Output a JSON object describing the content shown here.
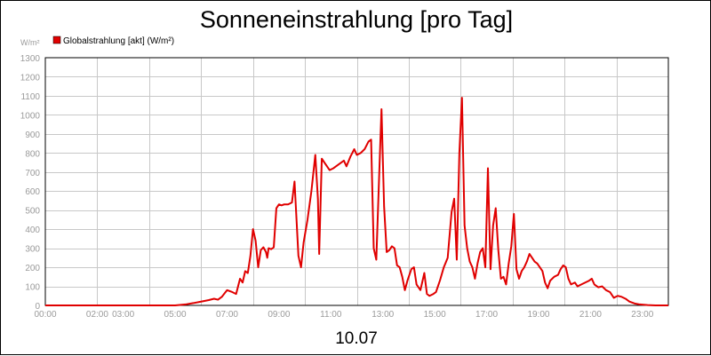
{
  "chart_data": {
    "type": "line",
    "title": "Sonneneinstrahlung [pro Tag]",
    "ylabel": "W/m²",
    "xlabel": "10.07",
    "ylim": [
      0,
      1300
    ],
    "xlim": [
      0,
      24
    ],
    "grid": true,
    "legend": "top-left",
    "y_ticks": [
      "0",
      "100",
      "200",
      "300",
      "400",
      "500",
      "600",
      "700",
      "800",
      "900",
      "1000",
      "1100",
      "1200",
      "1300"
    ],
    "x_ticks": [
      {
        "x": 0,
        "label": "00:00"
      },
      {
        "x": 2,
        "label": "02:00"
      },
      {
        "x": 3,
        "label": "03:00"
      },
      {
        "x": 5,
        "label": "05:00"
      },
      {
        "x": 7,
        "label": "07:00"
      },
      {
        "x": 9,
        "label": "09:00"
      },
      {
        "x": 11,
        "label": "11:00"
      },
      {
        "x": 13,
        "label": "13:00"
      },
      {
        "x": 15,
        "label": "15:00"
      },
      {
        "x": 17,
        "label": "17:00"
      },
      {
        "x": 19,
        "label": "19:00"
      },
      {
        "x": 21,
        "label": "21:00"
      },
      {
        "x": 23,
        "label": "23:00"
      }
    ],
    "series": [
      {
        "name": "Globalstrahlung [akt] (W/m²)",
        "color": "#e00000",
        "points": [
          [
            0,
            0
          ],
          [
            5.0,
            0
          ],
          [
            5.4,
            5
          ],
          [
            5.7,
            12
          ],
          [
            6.0,
            20
          ],
          [
            6.3,
            28
          ],
          [
            6.5,
            35
          ],
          [
            6.65,
            30
          ],
          [
            6.8,
            45
          ],
          [
            7.0,
            80
          ],
          [
            7.2,
            70
          ],
          [
            7.35,
            60
          ],
          [
            7.5,
            140
          ],
          [
            7.6,
            120
          ],
          [
            7.7,
            180
          ],
          [
            7.8,
            170
          ],
          [
            7.9,
            260
          ],
          [
            8.0,
            400
          ],
          [
            8.1,
            340
          ],
          [
            8.2,
            200
          ],
          [
            8.3,
            290
          ],
          [
            8.4,
            305
          ],
          [
            8.5,
            280
          ],
          [
            8.55,
            250
          ],
          [
            8.6,
            300
          ],
          [
            8.7,
            295
          ],
          [
            8.8,
            305
          ],
          [
            8.9,
            510
          ],
          [
            9.0,
            530
          ],
          [
            9.1,
            525
          ],
          [
            9.2,
            530
          ],
          [
            9.35,
            530
          ],
          [
            9.5,
            540
          ],
          [
            9.6,
            650
          ],
          [
            9.75,
            260
          ],
          [
            9.85,
            200
          ],
          [
            9.95,
            330
          ],
          [
            10.1,
            450
          ],
          [
            10.25,
            600
          ],
          [
            10.4,
            790
          ],
          [
            10.5,
            560
          ],
          [
            10.55,
            270
          ],
          [
            10.65,
            770
          ],
          [
            10.8,
            740
          ],
          [
            10.95,
            710
          ],
          [
            11.1,
            720
          ],
          [
            11.3,
            740
          ],
          [
            11.5,
            760
          ],
          [
            11.6,
            730
          ],
          [
            11.75,
            780
          ],
          [
            11.9,
            820
          ],
          [
            12.0,
            790
          ],
          [
            12.15,
            800
          ],
          [
            12.3,
            820
          ],
          [
            12.45,
            860
          ],
          [
            12.55,
            870
          ],
          [
            12.65,
            300
          ],
          [
            12.75,
            240
          ],
          [
            12.85,
            640
          ],
          [
            12.95,
            1030
          ],
          [
            13.05,
            520
          ],
          [
            13.15,
            280
          ],
          [
            13.25,
            290
          ],
          [
            13.35,
            310
          ],
          [
            13.45,
            300
          ],
          [
            13.55,
            210
          ],
          [
            13.65,
            200
          ],
          [
            13.75,
            150
          ],
          [
            13.85,
            80
          ],
          [
            13.95,
            130
          ],
          [
            14.1,
            190
          ],
          [
            14.2,
            200
          ],
          [
            14.3,
            110
          ],
          [
            14.45,
            80
          ],
          [
            14.6,
            170
          ],
          [
            14.7,
            60
          ],
          [
            14.8,
            50
          ],
          [
            14.95,
            60
          ],
          [
            15.05,
            70
          ],
          [
            15.2,
            130
          ],
          [
            15.35,
            200
          ],
          [
            15.5,
            250
          ],
          [
            15.65,
            490
          ],
          [
            15.75,
            560
          ],
          [
            15.85,
            240
          ],
          [
            15.95,
            800
          ],
          [
            16.05,
            1090
          ],
          [
            16.15,
            420
          ],
          [
            16.25,
            300
          ],
          [
            16.35,
            230
          ],
          [
            16.45,
            200
          ],
          [
            16.55,
            140
          ],
          [
            16.65,
            220
          ],
          [
            16.75,
            280
          ],
          [
            16.85,
            300
          ],
          [
            16.95,
            200
          ],
          [
            17.05,
            720
          ],
          [
            17.15,
            190
          ],
          [
            17.25,
            420
          ],
          [
            17.35,
            510
          ],
          [
            17.45,
            290
          ],
          [
            17.55,
            140
          ],
          [
            17.65,
            150
          ],
          [
            17.75,
            110
          ],
          [
            17.85,
            220
          ],
          [
            17.95,
            310
          ],
          [
            18.05,
            480
          ],
          [
            18.15,
            190
          ],
          [
            18.25,
            140
          ],
          [
            18.35,
            180
          ],
          [
            18.45,
            200
          ],
          [
            18.55,
            230
          ],
          [
            18.65,
            270
          ],
          [
            18.75,
            250
          ],
          [
            18.85,
            230
          ],
          [
            18.95,
            220
          ],
          [
            19.05,
            200
          ],
          [
            19.15,
            180
          ],
          [
            19.25,
            120
          ],
          [
            19.35,
            90
          ],
          [
            19.45,
            130
          ],
          [
            19.6,
            150
          ],
          [
            19.75,
            160
          ],
          [
            19.85,
            190
          ],
          [
            19.95,
            210
          ],
          [
            20.05,
            200
          ],
          [
            20.15,
            140
          ],
          [
            20.25,
            110
          ],
          [
            20.4,
            120
          ],
          [
            20.5,
            100
          ],
          [
            20.65,
            110
          ],
          [
            20.8,
            120
          ],
          [
            20.95,
            130
          ],
          [
            21.05,
            140
          ],
          [
            21.15,
            110
          ],
          [
            21.3,
            95
          ],
          [
            21.45,
            100
          ],
          [
            21.6,
            80
          ],
          [
            21.75,
            70
          ],
          [
            21.9,
            40
          ],
          [
            22.05,
            50
          ],
          [
            22.2,
            45
          ],
          [
            22.35,
            35
          ],
          [
            22.5,
            20
          ],
          [
            22.7,
            10
          ],
          [
            22.9,
            5
          ],
          [
            23.2,
            2
          ],
          [
            23.5,
            0
          ],
          [
            24,
            0
          ]
        ]
      }
    ]
  }
}
